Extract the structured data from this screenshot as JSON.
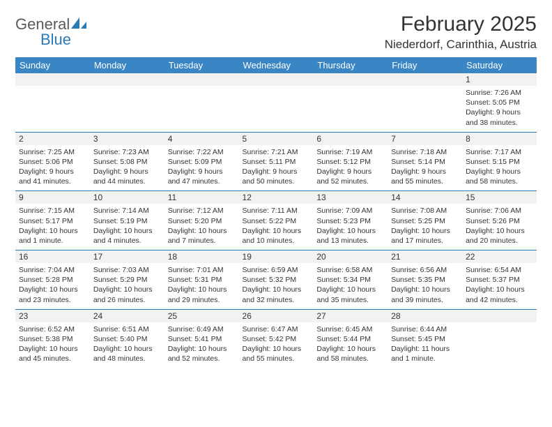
{
  "logo": {
    "word1": "General",
    "word2": "Blue"
  },
  "title": "February 2025",
  "location": "Niederdorf, Carinthia, Austria",
  "colors": {
    "header_bg": "#3a85c4",
    "header_text": "#ffffff",
    "rule": "#2a7ab8",
    "daynum_bg": "#f2f2f2",
    "text": "#333333",
    "logo_gray": "#5a5a5a",
    "logo_blue": "#2a7ab8"
  },
  "day_headers": [
    "Sunday",
    "Monday",
    "Tuesday",
    "Wednesday",
    "Thursday",
    "Friday",
    "Saturday"
  ],
  "weeks": [
    [
      null,
      null,
      null,
      null,
      null,
      null,
      {
        "n": "1",
        "sr": "Sunrise: 7:26 AM",
        "ss": "Sunset: 5:05 PM",
        "dl1": "Daylight: 9 hours",
        "dl2": "and 38 minutes."
      }
    ],
    [
      {
        "n": "2",
        "sr": "Sunrise: 7:25 AM",
        "ss": "Sunset: 5:06 PM",
        "dl1": "Daylight: 9 hours",
        "dl2": "and 41 minutes."
      },
      {
        "n": "3",
        "sr": "Sunrise: 7:23 AM",
        "ss": "Sunset: 5:08 PM",
        "dl1": "Daylight: 9 hours",
        "dl2": "and 44 minutes."
      },
      {
        "n": "4",
        "sr": "Sunrise: 7:22 AM",
        "ss": "Sunset: 5:09 PM",
        "dl1": "Daylight: 9 hours",
        "dl2": "and 47 minutes."
      },
      {
        "n": "5",
        "sr": "Sunrise: 7:21 AM",
        "ss": "Sunset: 5:11 PM",
        "dl1": "Daylight: 9 hours",
        "dl2": "and 50 minutes."
      },
      {
        "n": "6",
        "sr": "Sunrise: 7:19 AM",
        "ss": "Sunset: 5:12 PM",
        "dl1": "Daylight: 9 hours",
        "dl2": "and 52 minutes."
      },
      {
        "n": "7",
        "sr": "Sunrise: 7:18 AM",
        "ss": "Sunset: 5:14 PM",
        "dl1": "Daylight: 9 hours",
        "dl2": "and 55 minutes."
      },
      {
        "n": "8",
        "sr": "Sunrise: 7:17 AM",
        "ss": "Sunset: 5:15 PM",
        "dl1": "Daylight: 9 hours",
        "dl2": "and 58 minutes."
      }
    ],
    [
      {
        "n": "9",
        "sr": "Sunrise: 7:15 AM",
        "ss": "Sunset: 5:17 PM",
        "dl1": "Daylight: 10 hours",
        "dl2": "and 1 minute."
      },
      {
        "n": "10",
        "sr": "Sunrise: 7:14 AM",
        "ss": "Sunset: 5:19 PM",
        "dl1": "Daylight: 10 hours",
        "dl2": "and 4 minutes."
      },
      {
        "n": "11",
        "sr": "Sunrise: 7:12 AM",
        "ss": "Sunset: 5:20 PM",
        "dl1": "Daylight: 10 hours",
        "dl2": "and 7 minutes."
      },
      {
        "n": "12",
        "sr": "Sunrise: 7:11 AM",
        "ss": "Sunset: 5:22 PM",
        "dl1": "Daylight: 10 hours",
        "dl2": "and 10 minutes."
      },
      {
        "n": "13",
        "sr": "Sunrise: 7:09 AM",
        "ss": "Sunset: 5:23 PM",
        "dl1": "Daylight: 10 hours",
        "dl2": "and 13 minutes."
      },
      {
        "n": "14",
        "sr": "Sunrise: 7:08 AM",
        "ss": "Sunset: 5:25 PM",
        "dl1": "Daylight: 10 hours",
        "dl2": "and 17 minutes."
      },
      {
        "n": "15",
        "sr": "Sunrise: 7:06 AM",
        "ss": "Sunset: 5:26 PM",
        "dl1": "Daylight: 10 hours",
        "dl2": "and 20 minutes."
      }
    ],
    [
      {
        "n": "16",
        "sr": "Sunrise: 7:04 AM",
        "ss": "Sunset: 5:28 PM",
        "dl1": "Daylight: 10 hours",
        "dl2": "and 23 minutes."
      },
      {
        "n": "17",
        "sr": "Sunrise: 7:03 AM",
        "ss": "Sunset: 5:29 PM",
        "dl1": "Daylight: 10 hours",
        "dl2": "and 26 minutes."
      },
      {
        "n": "18",
        "sr": "Sunrise: 7:01 AM",
        "ss": "Sunset: 5:31 PM",
        "dl1": "Daylight: 10 hours",
        "dl2": "and 29 minutes."
      },
      {
        "n": "19",
        "sr": "Sunrise: 6:59 AM",
        "ss": "Sunset: 5:32 PM",
        "dl1": "Daylight: 10 hours",
        "dl2": "and 32 minutes."
      },
      {
        "n": "20",
        "sr": "Sunrise: 6:58 AM",
        "ss": "Sunset: 5:34 PM",
        "dl1": "Daylight: 10 hours",
        "dl2": "and 35 minutes."
      },
      {
        "n": "21",
        "sr": "Sunrise: 6:56 AM",
        "ss": "Sunset: 5:35 PM",
        "dl1": "Daylight: 10 hours",
        "dl2": "and 39 minutes."
      },
      {
        "n": "22",
        "sr": "Sunrise: 6:54 AM",
        "ss": "Sunset: 5:37 PM",
        "dl1": "Daylight: 10 hours",
        "dl2": "and 42 minutes."
      }
    ],
    [
      {
        "n": "23",
        "sr": "Sunrise: 6:52 AM",
        "ss": "Sunset: 5:38 PM",
        "dl1": "Daylight: 10 hours",
        "dl2": "and 45 minutes."
      },
      {
        "n": "24",
        "sr": "Sunrise: 6:51 AM",
        "ss": "Sunset: 5:40 PM",
        "dl1": "Daylight: 10 hours",
        "dl2": "and 48 minutes."
      },
      {
        "n": "25",
        "sr": "Sunrise: 6:49 AM",
        "ss": "Sunset: 5:41 PM",
        "dl1": "Daylight: 10 hours",
        "dl2": "and 52 minutes."
      },
      {
        "n": "26",
        "sr": "Sunrise: 6:47 AM",
        "ss": "Sunset: 5:42 PM",
        "dl1": "Daylight: 10 hours",
        "dl2": "and 55 minutes."
      },
      {
        "n": "27",
        "sr": "Sunrise: 6:45 AM",
        "ss": "Sunset: 5:44 PM",
        "dl1": "Daylight: 10 hours",
        "dl2": "and 58 minutes."
      },
      {
        "n": "28",
        "sr": "Sunrise: 6:44 AM",
        "ss": "Sunset: 5:45 PM",
        "dl1": "Daylight: 11 hours",
        "dl2": "and 1 minute."
      },
      null
    ]
  ]
}
